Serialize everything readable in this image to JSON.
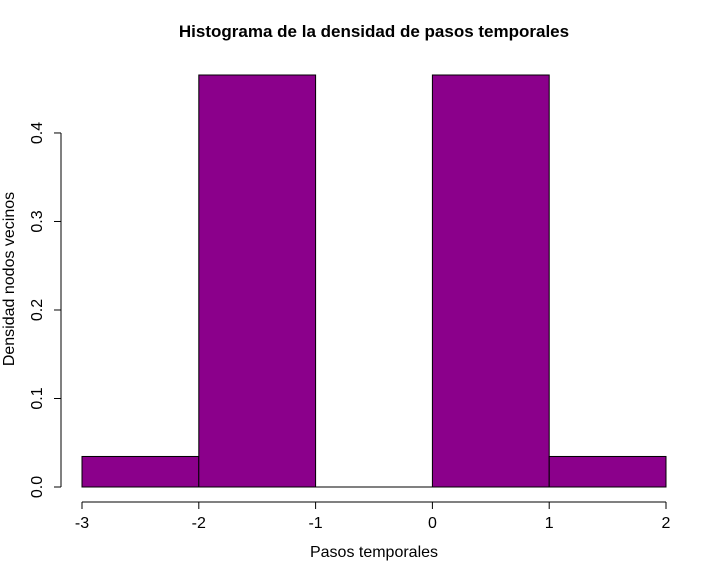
{
  "chart_data": {
    "type": "bar",
    "title": "Histograma de la densidad de pasos temporales",
    "xlabel": "Pasos temporales",
    "ylabel": "Densidad nodos vecinos",
    "bins": [
      {
        "x0": -3,
        "x1": -2,
        "density": 0.0345
      },
      {
        "x0": -2,
        "x1": -1,
        "density": 0.4655
      },
      {
        "x0": -1,
        "x1": 0,
        "density": 0.0
      },
      {
        "x0": 0,
        "x1": 1,
        "density": 0.4655
      },
      {
        "x0": 1,
        "x1": 2,
        "density": 0.0345
      }
    ],
    "xlim": [
      -3,
      2
    ],
    "ylim": [
      0,
      0.4655
    ],
    "x_ticks": [
      -3,
      -2,
      -1,
      0,
      1,
      2
    ],
    "x_tick_labels": [
      "-3",
      "-2",
      "-1",
      "0",
      "1",
      "2"
    ],
    "y_ticks": [
      0.0,
      0.1,
      0.2,
      0.3,
      0.4
    ],
    "y_tick_labels": [
      "0.0",
      "0.1",
      "0.2",
      "0.3",
      "0.4"
    ],
    "bar_color": "#8b008b",
    "grid": false
  }
}
